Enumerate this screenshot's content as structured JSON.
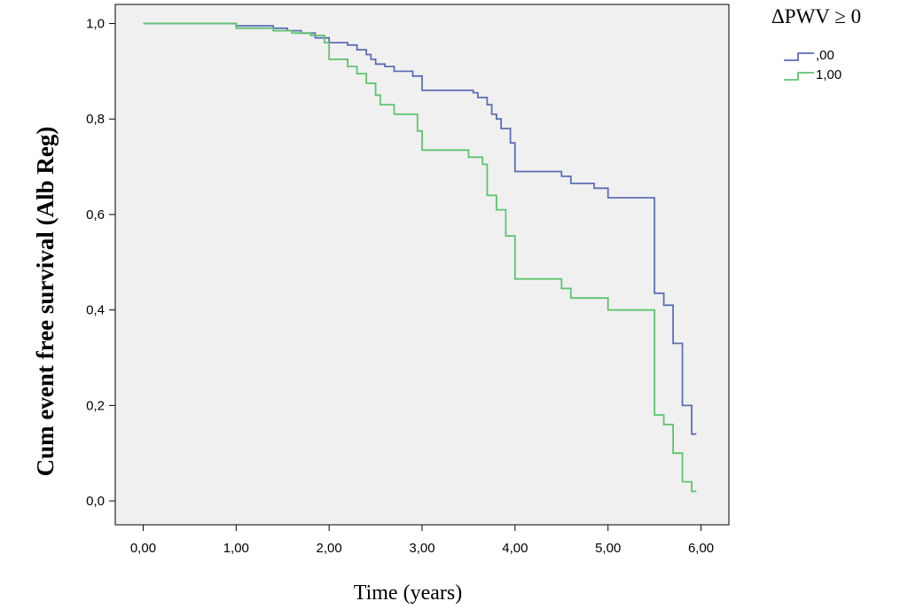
{
  "chart_data": {
    "type": "line",
    "step": true,
    "title": "",
    "xlabel": "Time (years)",
    "ylabel": "Cum event free survival (Alb Reg)",
    "xlim": [
      -0.3,
      6.3
    ],
    "ylim": [
      -0.05,
      1.04
    ],
    "xticks": [
      0,
      1,
      2,
      3,
      4,
      5,
      6
    ],
    "xtick_labels": [
      "0,00",
      "1,00",
      "2,00",
      "3,00",
      "4,00",
      "5,00",
      "6,00"
    ],
    "yticks": [
      0,
      0.2,
      0.4,
      0.6,
      0.8,
      1.0
    ],
    "ytick_labels": [
      "0,0",
      "0,2",
      "0,4",
      "0,6",
      "0,8",
      "1,0"
    ],
    "grid": false,
    "plot_background": "#f0f0f0",
    "legend": {
      "title": "ΔPWV ≥ 0",
      "position": "top-right"
    },
    "series": [
      {
        "name": ",00",
        "color": "#5b6fb5",
        "points": [
          [
            0,
            1.0
          ],
          [
            1.0,
            0.995
          ],
          [
            1.4,
            0.99
          ],
          [
            1.55,
            0.985
          ],
          [
            1.7,
            0.98
          ],
          [
            1.85,
            0.97
          ],
          [
            2.0,
            0.96
          ],
          [
            2.2,
            0.955
          ],
          [
            2.3,
            0.945
          ],
          [
            2.4,
            0.935
          ],
          [
            2.45,
            0.925
          ],
          [
            2.5,
            0.915
          ],
          [
            2.6,
            0.91
          ],
          [
            2.7,
            0.9
          ],
          [
            2.9,
            0.89
          ],
          [
            3.0,
            0.86
          ],
          [
            3.55,
            0.855
          ],
          [
            3.6,
            0.845
          ],
          [
            3.7,
            0.83
          ],
          [
            3.75,
            0.81
          ],
          [
            3.8,
            0.8
          ],
          [
            3.85,
            0.78
          ],
          [
            3.95,
            0.75
          ],
          [
            4.0,
            0.69
          ],
          [
            4.5,
            0.68
          ],
          [
            4.6,
            0.665
          ],
          [
            4.85,
            0.655
          ],
          [
            5.0,
            0.635
          ],
          [
            5.5,
            0.435
          ],
          [
            5.6,
            0.41
          ],
          [
            5.7,
            0.33
          ],
          [
            5.8,
            0.2
          ],
          [
            5.9,
            0.14
          ],
          [
            5.95,
            0.14
          ]
        ]
      },
      {
        "name": "1,00",
        "color": "#5ec46e",
        "points": [
          [
            0,
            1.0
          ],
          [
            1.0,
            0.99
          ],
          [
            1.4,
            0.985
          ],
          [
            1.6,
            0.98
          ],
          [
            1.8,
            0.975
          ],
          [
            1.95,
            0.96
          ],
          [
            2.0,
            0.925
          ],
          [
            2.2,
            0.91
          ],
          [
            2.3,
            0.895
          ],
          [
            2.4,
            0.875
          ],
          [
            2.5,
            0.85
          ],
          [
            2.55,
            0.83
          ],
          [
            2.7,
            0.81
          ],
          [
            2.95,
            0.775
          ],
          [
            3.0,
            0.735
          ],
          [
            3.5,
            0.72
          ],
          [
            3.65,
            0.705
          ],
          [
            3.7,
            0.64
          ],
          [
            3.8,
            0.61
          ],
          [
            3.9,
            0.555
          ],
          [
            4.0,
            0.465
          ],
          [
            4.5,
            0.445
          ],
          [
            4.6,
            0.425
          ],
          [
            5.0,
            0.4
          ],
          [
            5.5,
            0.18
          ],
          [
            5.6,
            0.16
          ],
          [
            5.7,
            0.1
          ],
          [
            5.8,
            0.04
          ],
          [
            5.9,
            0.02
          ],
          [
            5.95,
            0.02
          ]
        ]
      }
    ]
  }
}
